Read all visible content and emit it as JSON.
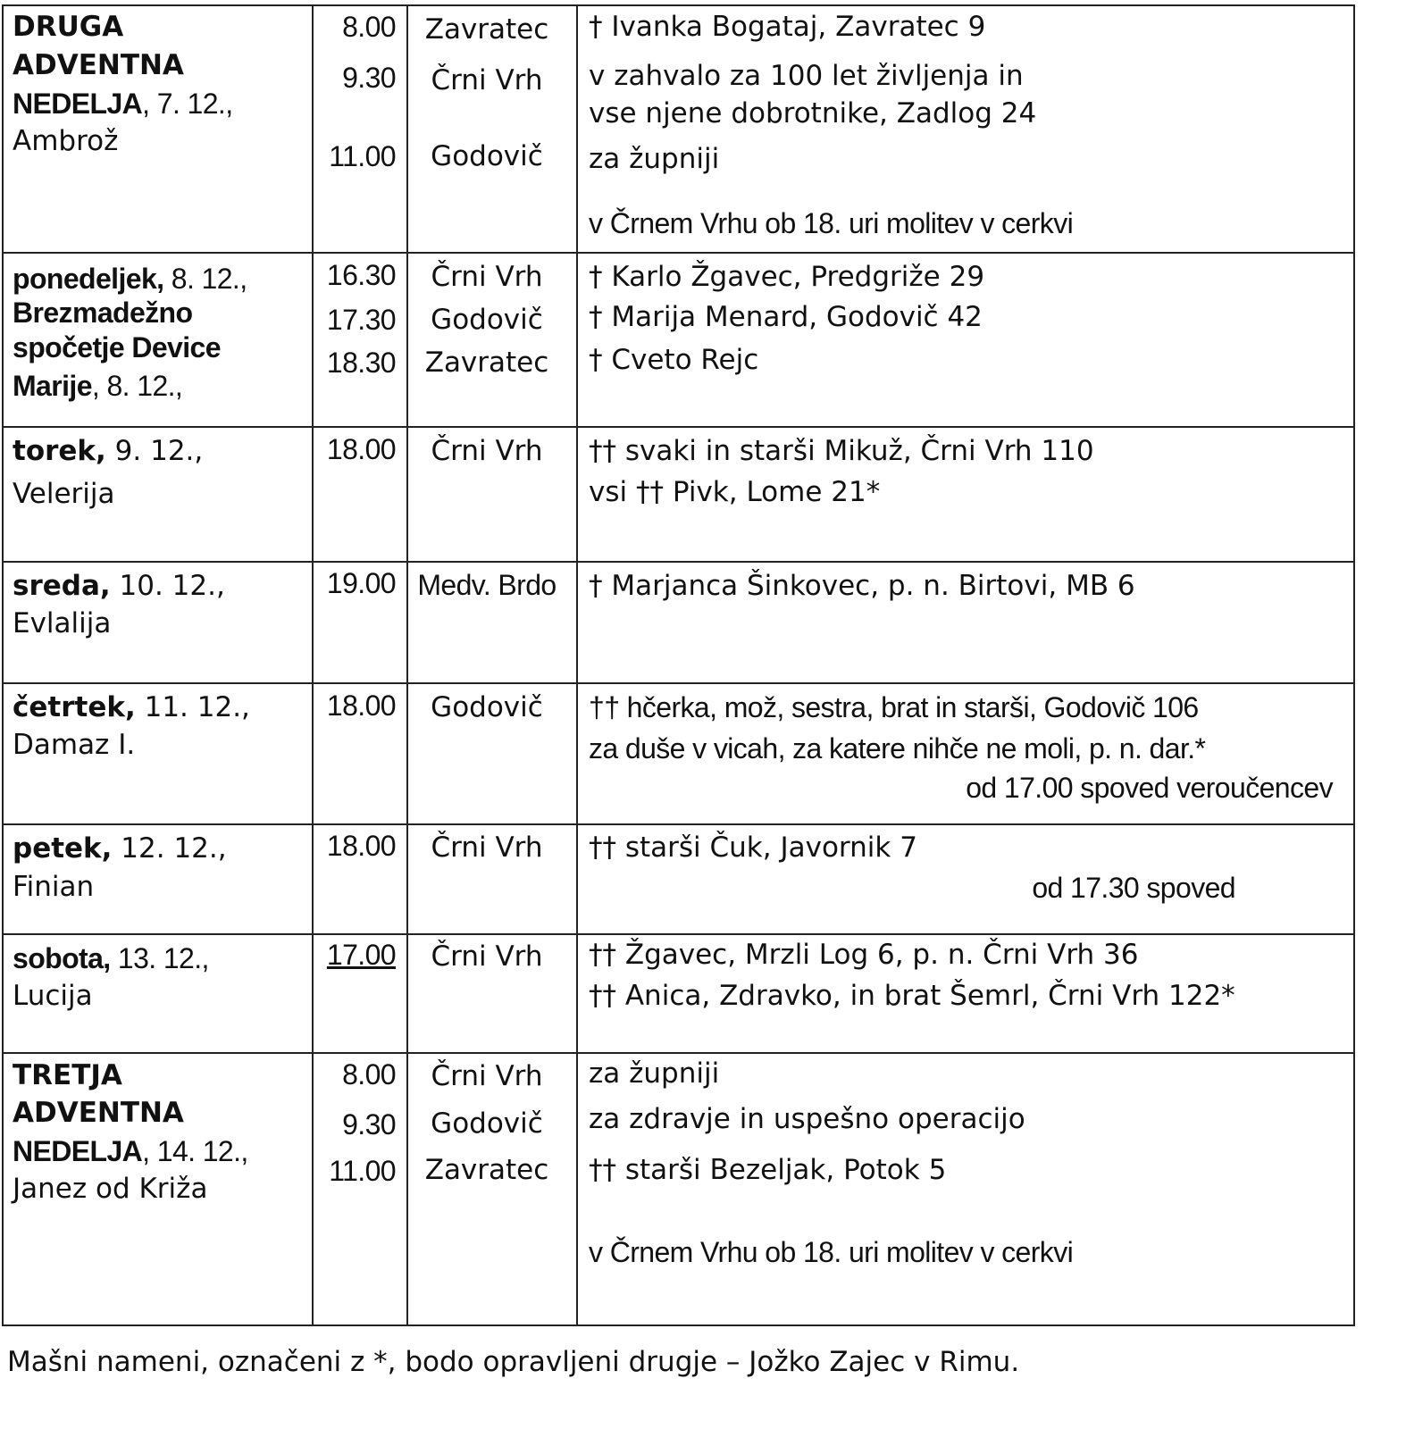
{
  "rows": [
    {
      "day": [
        [
          "DRUGA",
          ""
        ],
        [
          "ADVENTNA",
          ""
        ],
        [
          "NEDELJA",
          ", 7. 12.,"
        ],
        [
          "",
          "Ambrož"
        ]
      ],
      "times": [
        "8.00",
        "9.30",
        "11.00"
      ],
      "places": [
        "Zavratec",
        "Črni Vrh",
        "Godovič"
      ],
      "intentions": [
        "† Ivanka Bogataj, Zavratec 9",
        "v zahvalo za 100 let življenja in",
        "vse njene dobrotnike, Zadlog 24",
        "za župniji",
        "v Črnem Vrhu ob 18. uri molitev v cerkvi"
      ]
    },
    {
      "day": [
        [
          "ponedeljek,",
          " 8. 12.,"
        ],
        [
          "Brezmadežno",
          ""
        ],
        [
          "spočetje Device",
          ""
        ],
        [
          "Marije",
          ", 8. 12.,"
        ]
      ],
      "times": [
        "16.30",
        "17.30",
        "18.30"
      ],
      "places": [
        "Črni Vrh",
        "Godovič",
        "Zavratec"
      ],
      "intentions": [
        "† Karlo Žgavec, Predgriže 29",
        "† Marija Menard, Godovič 42",
        "† Cveto Rejc"
      ]
    },
    {
      "day": [
        [
          "torek,",
          " 9. 12.,"
        ],
        [
          "",
          "Velerija"
        ]
      ],
      "times": [
        "18.00"
      ],
      "places": [
        "Črni Vrh"
      ],
      "intentions": [
        "†† svaki in starši Mikuž, Črni Vrh 110",
        "vsi †† Pivk, Lome 21*"
      ]
    },
    {
      "day": [
        [
          "sreda,",
          " 10. 12.,"
        ],
        [
          "",
          "Evlalija"
        ]
      ],
      "times": [
        "19.00"
      ],
      "places": [
        "Medv. Brdo"
      ],
      "intentions": [
        "† Marjanca Šinkovec, p. n. Birtovi, MB 6"
      ]
    },
    {
      "day": [
        [
          "četrtek,",
          " 11. 12.,"
        ],
        [
          "",
          "Damaz I."
        ]
      ],
      "times": [
        "18.00"
      ],
      "places": [
        "Godovič"
      ],
      "intentions": [
        "††  hčerka, mož, sestra, brat in starši, Godovič 106",
        "za duše v vicah, za katere nihče ne moli, p. n. dar.*",
        "od 17.00 spoved veroučencev"
      ]
    },
    {
      "day": [
        [
          "petek,",
          " 12. 12.,"
        ],
        [
          "",
          "Finian"
        ]
      ],
      "times": [
        "18.00"
      ],
      "places": [
        "Črni Vrh"
      ],
      "intentions": [
        "†† starši Čuk, Javornik 7",
        "od 17.30 spoved"
      ]
    },
    {
      "day": [
        [
          "sobota,",
          " 13. 12.,"
        ],
        [
          "",
          "Lucija"
        ]
      ],
      "times": [
        "17.00"
      ],
      "places": [
        "Črni Vrh"
      ],
      "intentions": [
        "†† Žgavec, Mrzli Log 6, p. n. Črni Vrh 36",
        "†† Anica, Zdravko, in brat Šemrl, Črni Vrh 122*"
      ]
    },
    {
      "day": [
        [
          "TRETJA",
          ""
        ],
        [
          "ADVENTNA",
          ""
        ],
        [
          "NEDELJA",
          ", 14. 12.,"
        ],
        [
          "",
          "Janez od Križa"
        ]
      ],
      "times": [
        "8.00",
        "9.30",
        "11.00"
      ],
      "places": [
        "Črni Vrh",
        "Godovič",
        "Zavratec"
      ],
      "intentions": [
        "za župniji",
        "za zdravje in uspešno operacijo",
        "†† starši Bezeljak, Potok 5",
        "v Črnem Vrhu ob 18. uri molitev v cerkvi"
      ]
    }
  ],
  "footer": "Mašni nameni, označeni z *, bodo opravljeni drugje – Jožko Zajec v Rimu."
}
